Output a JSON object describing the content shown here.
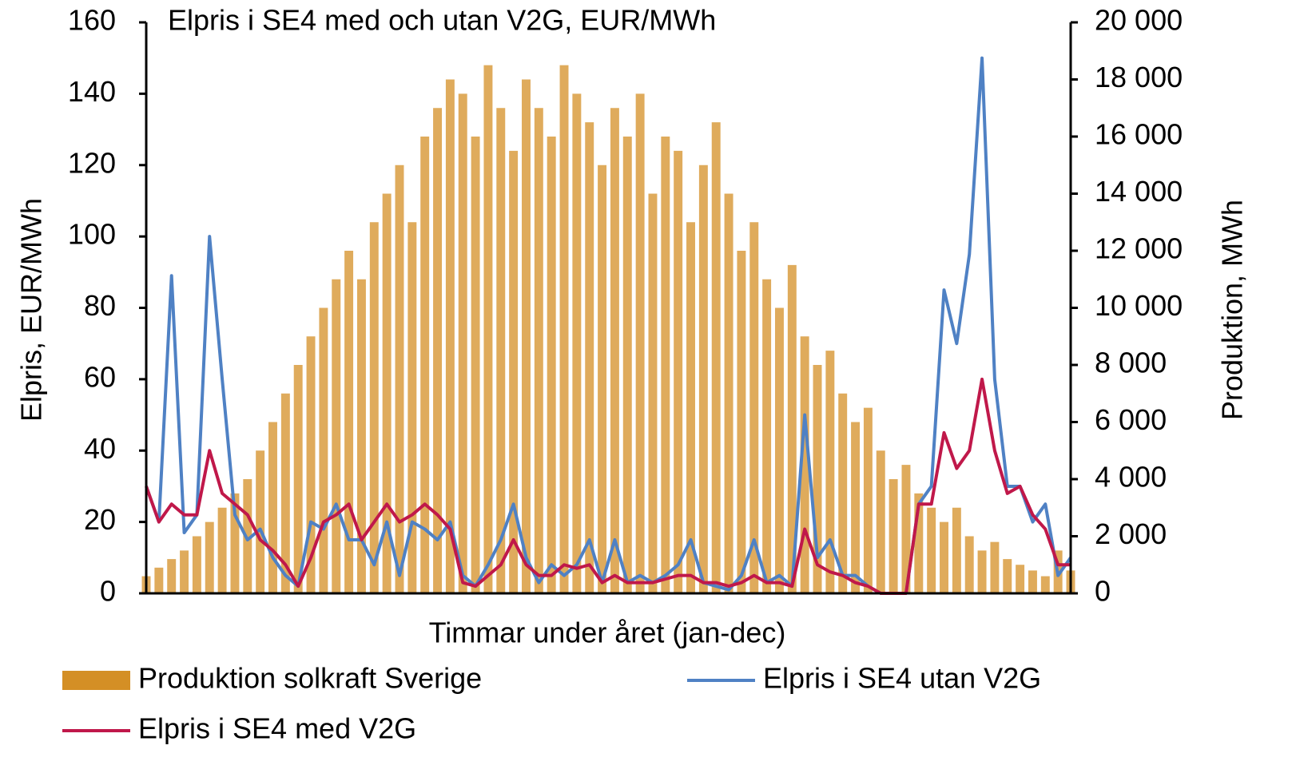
{
  "chart_data": {
    "type": "combo",
    "title": "Elpris i SE4 med och utan V2G, EUR/MWh",
    "xlabel": "Timmar under året (jan-dec)",
    "ylabel": "Elpris, EUR/MWh",
    "y2label": "Produktion, MWh",
    "x": [
      0,
      120,
      240,
      360,
      480,
      600,
      720,
      840,
      960,
      1080,
      1200,
      1320,
      1440,
      1560,
      1680,
      1800,
      1920,
      2040,
      2160,
      2280,
      2400,
      2520,
      2640,
      2760,
      2880,
      3000,
      3120,
      3240,
      3360,
      3480,
      3600,
      3720,
      3840,
      3960,
      4080,
      4200,
      4320,
      4440,
      4560,
      4680,
      4800,
      4920,
      5040,
      5160,
      5280,
      5400,
      5520,
      5640,
      5760,
      5880,
      6000,
      6120,
      6240,
      6360,
      6480,
      6600,
      6720,
      6840,
      6960,
      7080,
      7200,
      7320,
      7440,
      7560,
      7680,
      7800,
      7920,
      8040,
      8160,
      8280,
      8400,
      8520,
      8640,
      8760
    ],
    "xlim": [
      0,
      8760
    ],
    "ylim": [
      0,
      160
    ],
    "yticks": [
      0,
      20,
      40,
      60,
      80,
      100,
      120,
      140,
      160
    ],
    "y2lim": [
      0,
      20000
    ],
    "y2ticks": [
      0,
      {
        "value": 2000,
        "label": "2 000"
      },
      {
        "value": 4000,
        "label": "4 000"
      },
      {
        "value": 6000,
        "label": "6 000"
      },
      {
        "value": 8000,
        "label": "8 000"
      },
      {
        "value": 10000,
        "label": "10 000"
      },
      {
        "value": 12000,
        "label": "12 000"
      },
      {
        "value": 14000,
        "label": "14 000"
      },
      {
        "value": 16000,
        "label": "16 000"
      },
      {
        "value": 18000,
        "label": "18 000"
      },
      {
        "value": 20000,
        "label": "20 000"
      }
    ],
    "series": [
      {
        "name": "Produktion solkraft Sverige",
        "type": "bar",
        "axis": "y2",
        "color": "#d48f25",
        "values": [
          600,
          900,
          1200,
          1500,
          2000,
          2500,
          3000,
          3500,
          4000,
          5000,
          6000,
          7000,
          8000,
          9000,
          10000,
          11000,
          12000,
          11000,
          13000,
          14000,
          15000,
          13000,
          16000,
          17000,
          18000,
          17500,
          16000,
          18500,
          17000,
          15500,
          18000,
          17000,
          16000,
          18500,
          17500,
          16500,
          15000,
          17000,
          16000,
          17500,
          14000,
          16000,
          15500,
          13000,
          15000,
          16500,
          14000,
          12000,
          13000,
          11000,
          10000,
          11500,
          9000,
          8000,
          8500,
          7000,
          6000,
          6500,
          5000,
          4000,
          4500,
          3500,
          3000,
          2500,
          3000,
          2000,
          1500,
          1800,
          1200,
          1000,
          800,
          600,
          1500,
          800
        ]
      },
      {
        "name": "Elpris i SE4 utan V2G",
        "type": "line",
        "color": "#4f81c4",
        "values": [
          30,
          20,
          89,
          17,
          22,
          100,
          60,
          22,
          15,
          18,
          10,
          5,
          2,
          20,
          18,
          25,
          15,
          15,
          8,
          20,
          5,
          20,
          18,
          15,
          20,
          5,
          2,
          8,
          15,
          25,
          10,
          3,
          8,
          5,
          8,
          15,
          3,
          15,
          3,
          5,
          3,
          5,
          8,
          15,
          3,
          2,
          1,
          5,
          15,
          3,
          5,
          2,
          50,
          10,
          15,
          5,
          5,
          2,
          0,
          0,
          0,
          25,
          30,
          85,
          70,
          95,
          150,
          60,
          30,
          30,
          20,
          25,
          5,
          10
        ]
      },
      {
        "name": "Elpris i SE4 med V2G",
        "type": "line",
        "color": "#c0184a",
        "values": [
          30,
          20,
          25,
          22,
          22,
          40,
          28,
          25,
          22,
          15,
          12,
          8,
          2,
          10,
          20,
          22,
          25,
          15,
          20,
          25,
          20,
          22,
          25,
          22,
          18,
          3,
          2,
          5,
          8,
          15,
          8,
          5,
          5,
          8,
          7,
          8,
          3,
          5,
          3,
          3,
          3,
          4,
          5,
          5,
          3,
          3,
          2,
          3,
          5,
          3,
          3,
          2,
          18,
          8,
          6,
          5,
          3,
          2,
          0,
          0,
          0,
          25,
          25,
          45,
          35,
          40,
          60,
          40,
          28,
          30,
          22,
          18,
          8,
          8
        ]
      }
    ]
  }
}
